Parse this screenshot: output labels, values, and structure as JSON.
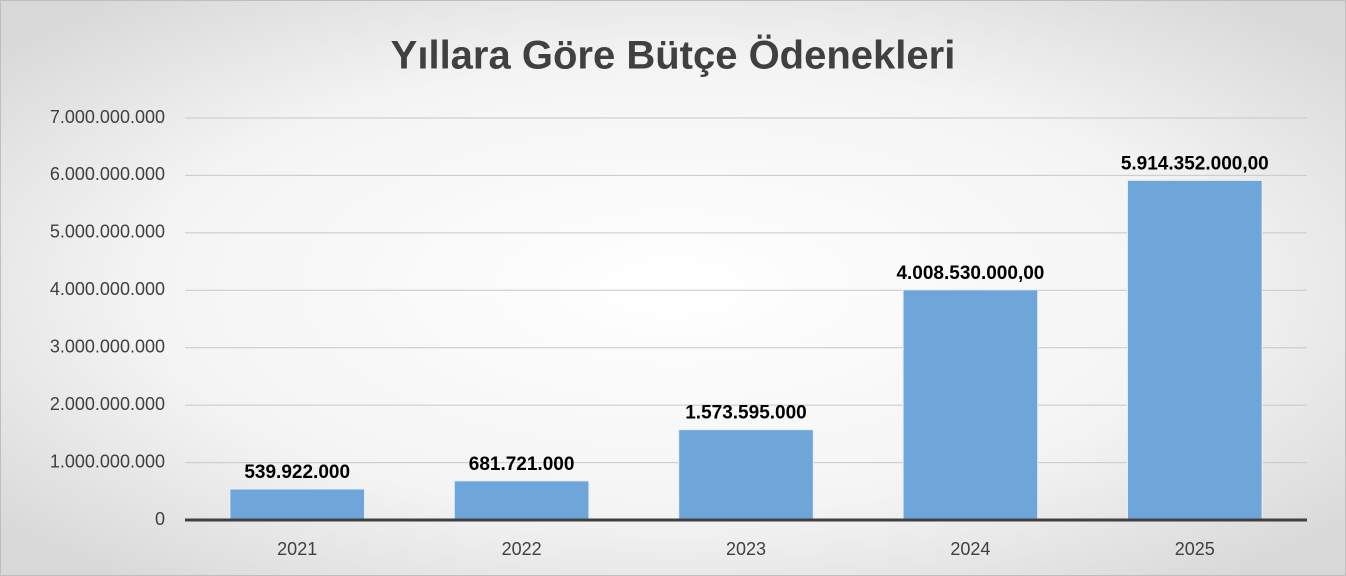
{
  "chart_data": {
    "type": "bar",
    "title": "Yıllara Göre Bütçe Ödenekleri",
    "categories": [
      "2021",
      "2022",
      "2023",
      "2024",
      "2025"
    ],
    "values": [
      539922000,
      681721000,
      1573595000,
      4008530000,
      5914352000
    ],
    "value_labels": [
      "539.922.000",
      "681.721.000",
      "1.573.595.000",
      "4.008.530.000,00",
      "5.914.352.000,00"
    ],
    "color": "#6fa6da",
    "ylim": [
      0,
      7000000000
    ],
    "yticks": [
      0,
      {
        "value": 1000000000,
        "label": "1.000.000.000"
      },
      {
        "value": 2000000000,
        "label": "2.000.000.000"
      },
      {
        "value": 3000000000,
        "label": "3.000.000.000"
      },
      {
        "value": 4000000000,
        "label": "4.000.000.000"
      },
      {
        "value": 5000000000,
        "label": "5.000.000.000"
      },
      {
        "value": 6000000000,
        "label": "6.000.000.000"
      },
      {
        "value": 7000000000,
        "label": "7.000.000.000"
      }
    ],
    "grid": true
  }
}
